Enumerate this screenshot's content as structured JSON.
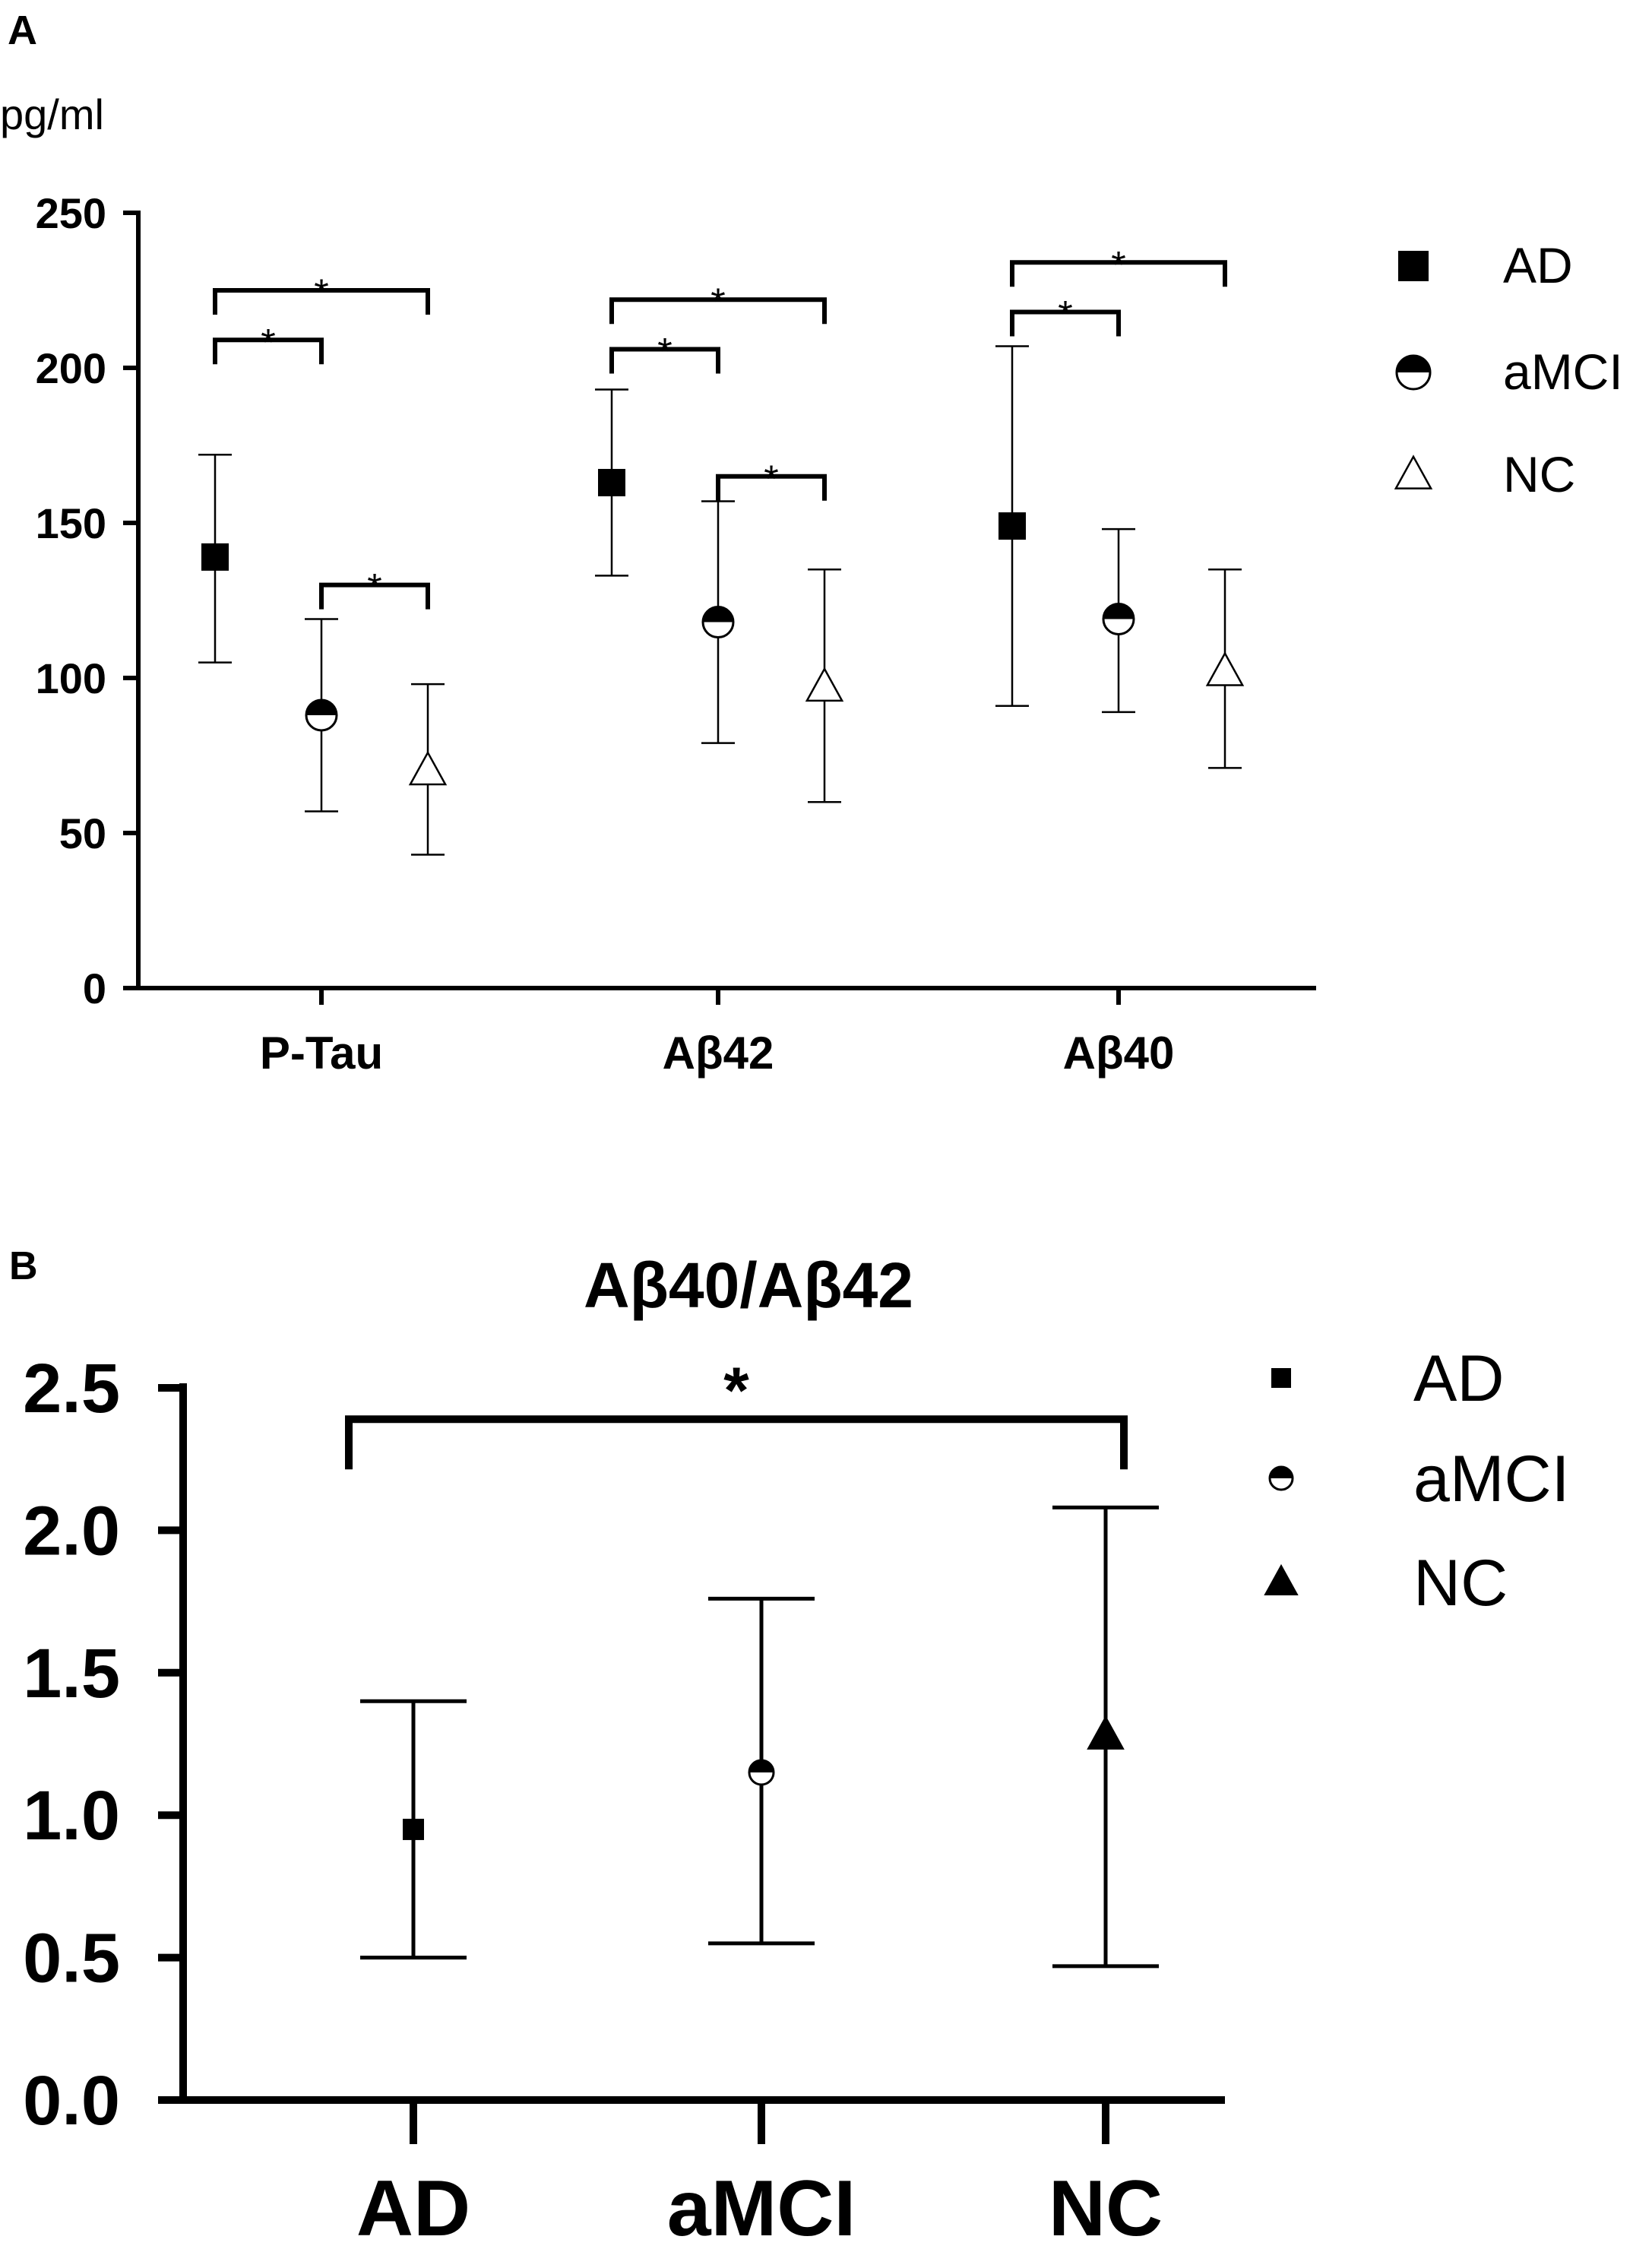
{
  "chart_data": [
    {
      "panel_label": "A",
      "type": "scatter",
      "unit_label": "pg/ml",
      "ylim": [
        0,
        250
      ],
      "yticks": [
        "0",
        "50",
        "100",
        "150",
        "200",
        "250"
      ],
      "categories": [
        "P-Tau",
        "Aβ42",
        "Aβ40"
      ],
      "legend_position": "top-right",
      "series": [
        {
          "name": "AD",
          "marker": "filled-square",
          "mean": [
            139,
            163,
            149
          ],
          "lower": [
            105,
            133,
            91
          ],
          "upper": [
            172,
            193,
            207
          ]
        },
        {
          "name": "aMCI",
          "marker": "half-filled-circle",
          "mean": [
            88,
            118,
            119
          ],
          "lower": [
            57,
            79,
            89
          ],
          "upper": [
            119,
            157,
            148
          ]
        },
        {
          "name": "NC",
          "marker": "open-triangle",
          "mean": [
            70,
            97,
            102
          ],
          "lower": [
            43,
            60,
            71
          ],
          "upper": [
            98,
            135,
            135
          ]
        }
      ],
      "significance": [
        {
          "category": "P-Tau",
          "from": "AD",
          "to": "aMCI",
          "level": 209,
          "label": "*"
        },
        {
          "category": "P-Tau",
          "from": "AD",
          "to": "NC",
          "level": 225,
          "label": "*"
        },
        {
          "category": "P-Tau",
          "from": "aMCI",
          "to": "NC",
          "level": 130,
          "label": "*"
        },
        {
          "category": "Aβ42",
          "from": "AD",
          "to": "aMCI",
          "level": 206,
          "label": "*"
        },
        {
          "category": "Aβ42",
          "from": "AD",
          "to": "NC",
          "level": 222,
          "label": "*"
        },
        {
          "category": "Aβ42",
          "from": "aMCI",
          "to": "NC",
          "level": 165,
          "label": "*"
        },
        {
          "category": "Aβ40",
          "from": "AD",
          "to": "aMCI",
          "level": 218,
          "label": "*"
        },
        {
          "category": "Aβ40",
          "from": "AD",
          "to": "NC",
          "level": 234,
          "label": "*"
        }
      ]
    },
    {
      "panel_label": "B",
      "type": "scatter",
      "title": "Aβ40/Aβ42",
      "ylim": [
        0,
        2.5
      ],
      "yticks": [
        "0.0",
        "0.5",
        "1.0",
        "1.5",
        "2.0",
        "2.5"
      ],
      "categories": [
        "AD",
        "aMCI",
        "NC"
      ],
      "legend_position": "top-right",
      "series": [
        {
          "name": "AD",
          "marker": "filled-square",
          "mean": 0.95,
          "lower": 0.5,
          "upper": 1.4
        },
        {
          "name": "aMCI",
          "marker": "half-filled-circle",
          "mean": 1.15,
          "lower": 0.55,
          "upper": 1.76
        },
        {
          "name": "NC",
          "marker": "filled-triangle",
          "mean": 1.28,
          "lower": 0.47,
          "upper": 2.08
        }
      ],
      "significance": [
        {
          "from": "AD",
          "to": "NC",
          "level": 2.39,
          "label": "*"
        }
      ]
    }
  ],
  "colors": {
    "ink": "#000000",
    "background": "#ffffff"
  }
}
